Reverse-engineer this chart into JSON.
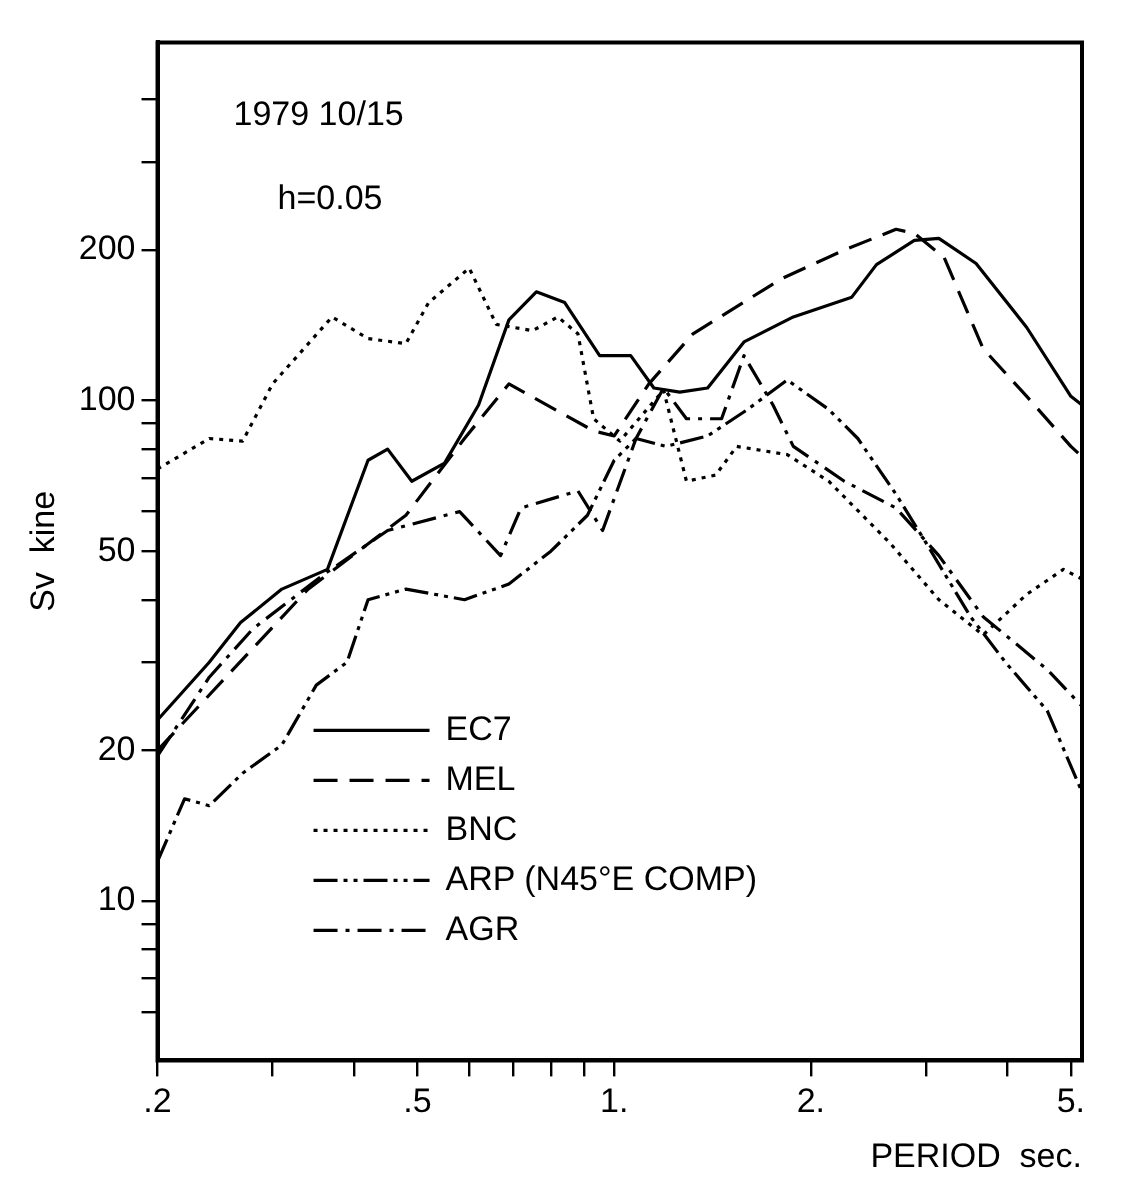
{
  "chart_data": {
    "type": "line",
    "xlabel": "PERIOD  sec.",
    "ylabel": "Sv  kine",
    "annotations": [
      "1979 10/15",
      "h=0.05"
    ],
    "log": "xy",
    "grid": false,
    "legend": "bottom left",
    "marker": "none",
    "xlim": [
      0.2,
      5.2
    ],
    "ylim": [
      4.8,
      520
    ],
    "xticks": [
      {
        "value": 0.2,
        "label": ".2"
      },
      {
        "value": 0.3,
        "label": null
      },
      {
        "value": 0.4,
        "label": null
      },
      {
        "value": 0.5,
        "label": ".5"
      },
      {
        "value": 0.6,
        "label": null
      },
      {
        "value": 0.7,
        "label": null
      },
      {
        "value": 0.8,
        "label": null
      },
      {
        "value": 0.9,
        "label": null
      },
      {
        "value": 1,
        "label": "1."
      },
      {
        "value": 2,
        "label": "2."
      },
      {
        "value": 3,
        "label": null
      },
      {
        "value": 4,
        "label": null
      },
      {
        "value": 5,
        "label": "5."
      }
    ],
    "yticks": [
      {
        "value": 6,
        "label": null
      },
      {
        "value": 7,
        "label": null
      },
      {
        "value": 8,
        "label": null
      },
      {
        "value": 9,
        "label": null
      },
      10,
      20,
      {
        "value": 30,
        "label": null
      },
      {
        "value": 40,
        "label": null
      },
      50,
      {
        "value": 60,
        "label": null
      },
      {
        "value": 70,
        "label": null
      },
      {
        "value": 80,
        "label": null
      },
      {
        "value": 90,
        "label": null
      },
      100,
      200,
      {
        "value": 300,
        "label": null
      },
      {
        "value": 400,
        "label": null
      }
    ],
    "series": [
      {
        "name": "EC7",
        "color": "#000000",
        "line_style": "solid",
        "x": [
          0.2,
          0.24,
          0.268,
          0.31,
          0.364,
          0.42,
          0.45,
          0.49,
          0.55,
          0.62,
          0.69,
          0.76,
          0.84,
          0.95,
          1.06,
          1.15,
          1.26,
          1.39,
          1.58,
          1.88,
          2.31,
          2.52,
          2.88,
          3.14,
          3.58,
          4.28,
          5,
          5.2
        ],
        "values": [
          23,
          30,
          36,
          42,
          46,
          76,
          80,
          69,
          75,
          98,
          145,
          165,
          157,
          123,
          123,
          106,
          104,
          106,
          131,
          147,
          161,
          187,
          209,
          211,
          188,
          140,
          102,
          98
        ]
      },
      {
        "name": "MEL",
        "color": "#000000",
        "line_style": "dashed",
        "x": [
          0.2,
          0.28,
          0.34,
          0.48,
          0.59,
          0.69,
          0.93,
          1.0,
          1.13,
          1.32,
          1.8,
          2.25,
          2.7,
          2.88,
          3.2,
          3.67,
          4.28,
          5,
          5.16
        ],
        "values": [
          20,
          32,
          42,
          59,
          84,
          108,
          87,
          85,
          108,
          136,
          175,
          200,
          220,
          216,
          193,
          127,
          102,
          81,
          78
        ]
      },
      {
        "name": "BNC",
        "color": "#000000",
        "line_style": "dotted",
        "x": [
          0.2,
          0.24,
          0.27,
          0.3,
          0.37,
          0.42,
          0.48,
          0.52,
          0.6,
          0.66,
          0.75,
          0.82,
          0.88,
          0.93,
          1.02,
          1.19,
          1.29,
          1.43,
          1.54,
          1.84,
          2.13,
          2.64,
          3.14,
          3.67,
          4.28,
          4.87,
          5.2
        ],
        "values": [
          73,
          84,
          83,
          108,
          147,
          133,
          130,
          157,
          184,
          142,
          138,
          147,
          136,
          92,
          83,
          105,
          69,
          71,
          81,
          78,
          69,
          52,
          40,
          34,
          41,
          46,
          44
        ]
      },
      {
        "name": "ARP (N45°E COMP)",
        "color": "#000000",
        "line_style": "dashdotdot",
        "x": [
          0.2,
          0.22,
          0.24,
          0.27,
          0.31,
          0.35,
          0.39,
          0.42,
          0.48,
          0.59,
          0.69,
          0.8,
          0.91,
          1.0,
          1.08,
          1.2,
          1.39,
          1.6,
          1.84,
          2.13,
          2.36,
          2.7,
          3.0,
          3.51,
          3.97,
          4.6,
          5.2
        ],
        "values": [
          12,
          16,
          15.5,
          18,
          20.5,
          27,
          30,
          40,
          42,
          40,
          43,
          50,
          59,
          76,
          84,
          81,
          85,
          96,
          110,
          96,
          84,
          65,
          52,
          37,
          30,
          24,
          16.5
        ]
      },
      {
        "name": "AGR",
        "color": "#000000",
        "line_style": "dashdot",
        "x": [
          0.2,
          0.24,
          0.28,
          0.36,
          0.45,
          0.58,
          0.67,
          0.72,
          0.88,
          0.96,
          1.08,
          1.19,
          1.29,
          1.46,
          1.58,
          1.75,
          1.88,
          2.25,
          2.7,
          3.14,
          3.67,
          3.97,
          4.6,
          5.2
        ],
        "values": [
          19.5,
          28,
          35,
          45,
          55,
          60,
          49,
          61,
          66,
          55,
          84,
          106,
          92,
          92,
          123,
          98,
          81,
          69,
          61,
          49,
          37,
          34,
          29,
          24.5
        ]
      }
    ]
  }
}
